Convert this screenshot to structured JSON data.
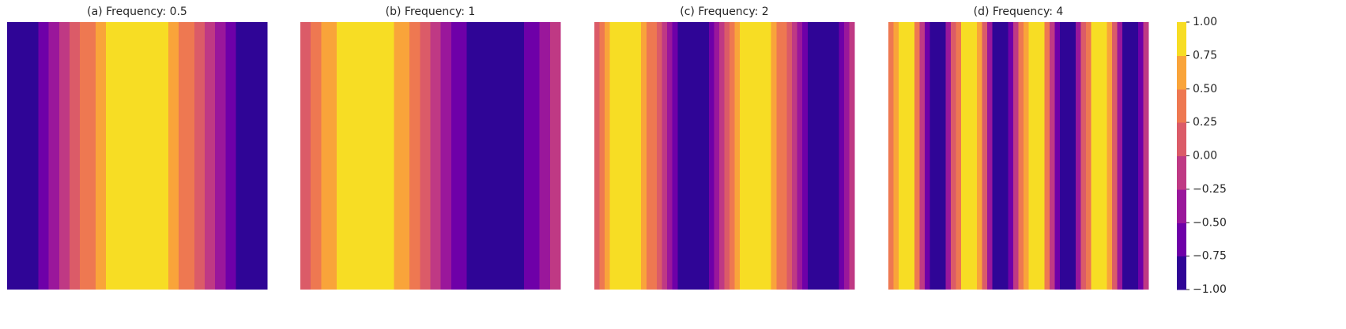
{
  "chart_data": [
    {
      "type": "heatmap",
      "title": "(a) Frequency: 0.5",
      "values": [
        -1,
        -0.98,
        -0.95,
        -0.9,
        -0.84,
        -0.77,
        -0.68,
        -0.59,
        -0.48,
        -0.37,
        -0.25,
        -0.13,
        0,
        0.13,
        0.25,
        0.37,
        0.48,
        0.59,
        0.68,
        0.77,
        0.84,
        0.9,
        0.95,
        0.98,
        1,
        1,
        0.98,
        0.95,
        0.9,
        0.84,
        0.77,
        0.68,
        0.59,
        0.48,
        0.37,
        0.25,
        0.13,
        0,
        -0.13,
        -0.25,
        -0.37,
        -0.48,
        -0.59,
        -0.68,
        -0.77,
        -0.84,
        -0.9,
        -0.95,
        -0.98,
        -1
      ]
    },
    {
      "type": "heatmap",
      "title": "(b) Frequency: 1",
      "values": [
        0.06,
        0.19,
        0.31,
        0.43,
        0.54,
        0.64,
        0.73,
        0.81,
        0.88,
        0.93,
        0.97,
        0.99,
        1,
        0.99,
        0.97,
        0.93,
        0.88,
        0.81,
        0.73,
        0.64,
        0.54,
        0.43,
        0.31,
        0.19,
        0.06,
        -0.06,
        -0.19,
        -0.31,
        -0.43,
        -0.54,
        -0.64,
        -0.73,
        -0.81,
        -0.88,
        -0.93,
        -0.97,
        -0.99,
        -1,
        -0.99,
        -0.97,
        -0.93,
        -0.88,
        -0.81,
        -0.73,
        -0.64,
        -0.54,
        -0.43,
        -0.31,
        -0.19,
        -0.06
      ]
    },
    {
      "type": "heatmap",
      "title": "(c) Frequency: 2",
      "values": [
        0.12,
        0.37,
        0.59,
        0.77,
        0.9,
        0.98,
        1,
        0.95,
        0.84,
        0.68,
        0.48,
        0.25,
        0,
        -0.25,
        -0.48,
        -0.68,
        -0.84,
        -0.95,
        -1,
        -0.98,
        -0.9,
        -0.77,
        -0.59,
        -0.37,
        -0.12,
        0.12,
        0.37,
        0.59,
        0.77,
        0.9,
        0.98,
        1,
        0.95,
        0.84,
        0.68,
        0.48,
        0.25,
        0,
        -0.25,
        -0.48,
        -0.68,
        -0.84,
        -0.95,
        -1,
        -0.98,
        -0.9,
        -0.77,
        -0.59,
        -0.37,
        -0.12
      ]
    },
    {
      "type": "heatmap",
      "title": "(d) Frequency: 4",
      "values": [
        0.25,
        0.69,
        0.95,
        0.98,
        0.77,
        0.37,
        -0.12,
        -0.59,
        -0.9,
        -1,
        -0.84,
        -0.48,
        0,
        0.48,
        0.84,
        1,
        0.9,
        0.59,
        0.12,
        -0.37,
        -0.77,
        -0.98,
        -0.95,
        -0.69,
        -0.25,
        0.25,
        0.69,
        0.95,
        0.98,
        0.77,
        0.37,
        -0.12,
        -0.59,
        -0.9,
        -1,
        -0.84,
        -0.48,
        0,
        0.48,
        0.84,
        1,
        0.9,
        0.59,
        0.12,
        -0.37,
        -0.77,
        -0.98,
        -0.95,
        -0.69,
        -0.25
      ]
    }
  ],
  "colorbar": {
    "ticks": [
      {
        "value": -1,
        "label": "−1.00"
      },
      {
        "value": -0.75,
        "label": "−0.75"
      },
      {
        "value": -0.5,
        "label": "−0.50"
      },
      {
        "value": -0.25,
        "label": "−0.25"
      },
      {
        "value": 0,
        "label": "0.00"
      },
      {
        "value": 0.25,
        "label": "0.25"
      },
      {
        "value": 0.5,
        "label": "0.50"
      },
      {
        "value": 0.75,
        "label": "0.75"
      },
      {
        "value": 1,
        "label": "1.00"
      }
    ],
    "colors": [
      "#2f0596",
      "#6e00a8",
      "#9a179b",
      "#bf3984",
      "#db5b68",
      "#ee7851",
      "#f9a43a",
      "#f7dd24"
    ]
  }
}
